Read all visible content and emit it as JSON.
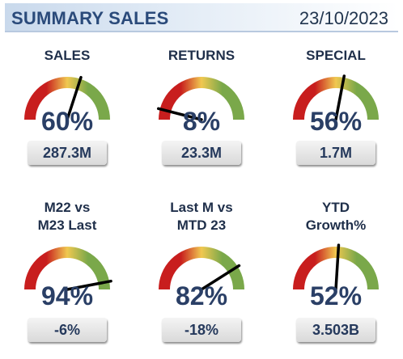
{
  "header": {
    "title": "SUMMARY SALES",
    "date": "23/10/2023"
  },
  "colors": {
    "red": "#c81e1e",
    "yellow": "#f0c850",
    "green": "#7aa84a",
    "needle": "#000000"
  },
  "gauges": [
    {
      "label_lines": [
        "SALES"
      ],
      "percent_text": "60%",
      "value": "287.3M",
      "needle_fraction": 0.6
    },
    {
      "label_lines": [
        "RETURNS"
      ],
      "percent_text": "8%",
      "value": "23.3M",
      "needle_fraction": 0.08
    },
    {
      "label_lines": [
        "SPECIAL"
      ],
      "percent_text": "56%",
      "value": "1.7M",
      "needle_fraction": 0.56
    },
    {
      "label_lines": [
        "M22 vs",
        "M23 Last"
      ],
      "percent_text": "94%",
      "value": "-6%",
      "needle_fraction": 0.94
    },
    {
      "label_lines": [
        "Last M vs",
        "MTD 23"
      ],
      "percent_text": "82%",
      "value": "-18%",
      "needle_fraction": 0.82
    },
    {
      "label_lines": [
        "YTD",
        "Growth%"
      ],
      "percent_text": "52%",
      "value": "3.503B",
      "needle_fraction": 0.52
    }
  ]
}
